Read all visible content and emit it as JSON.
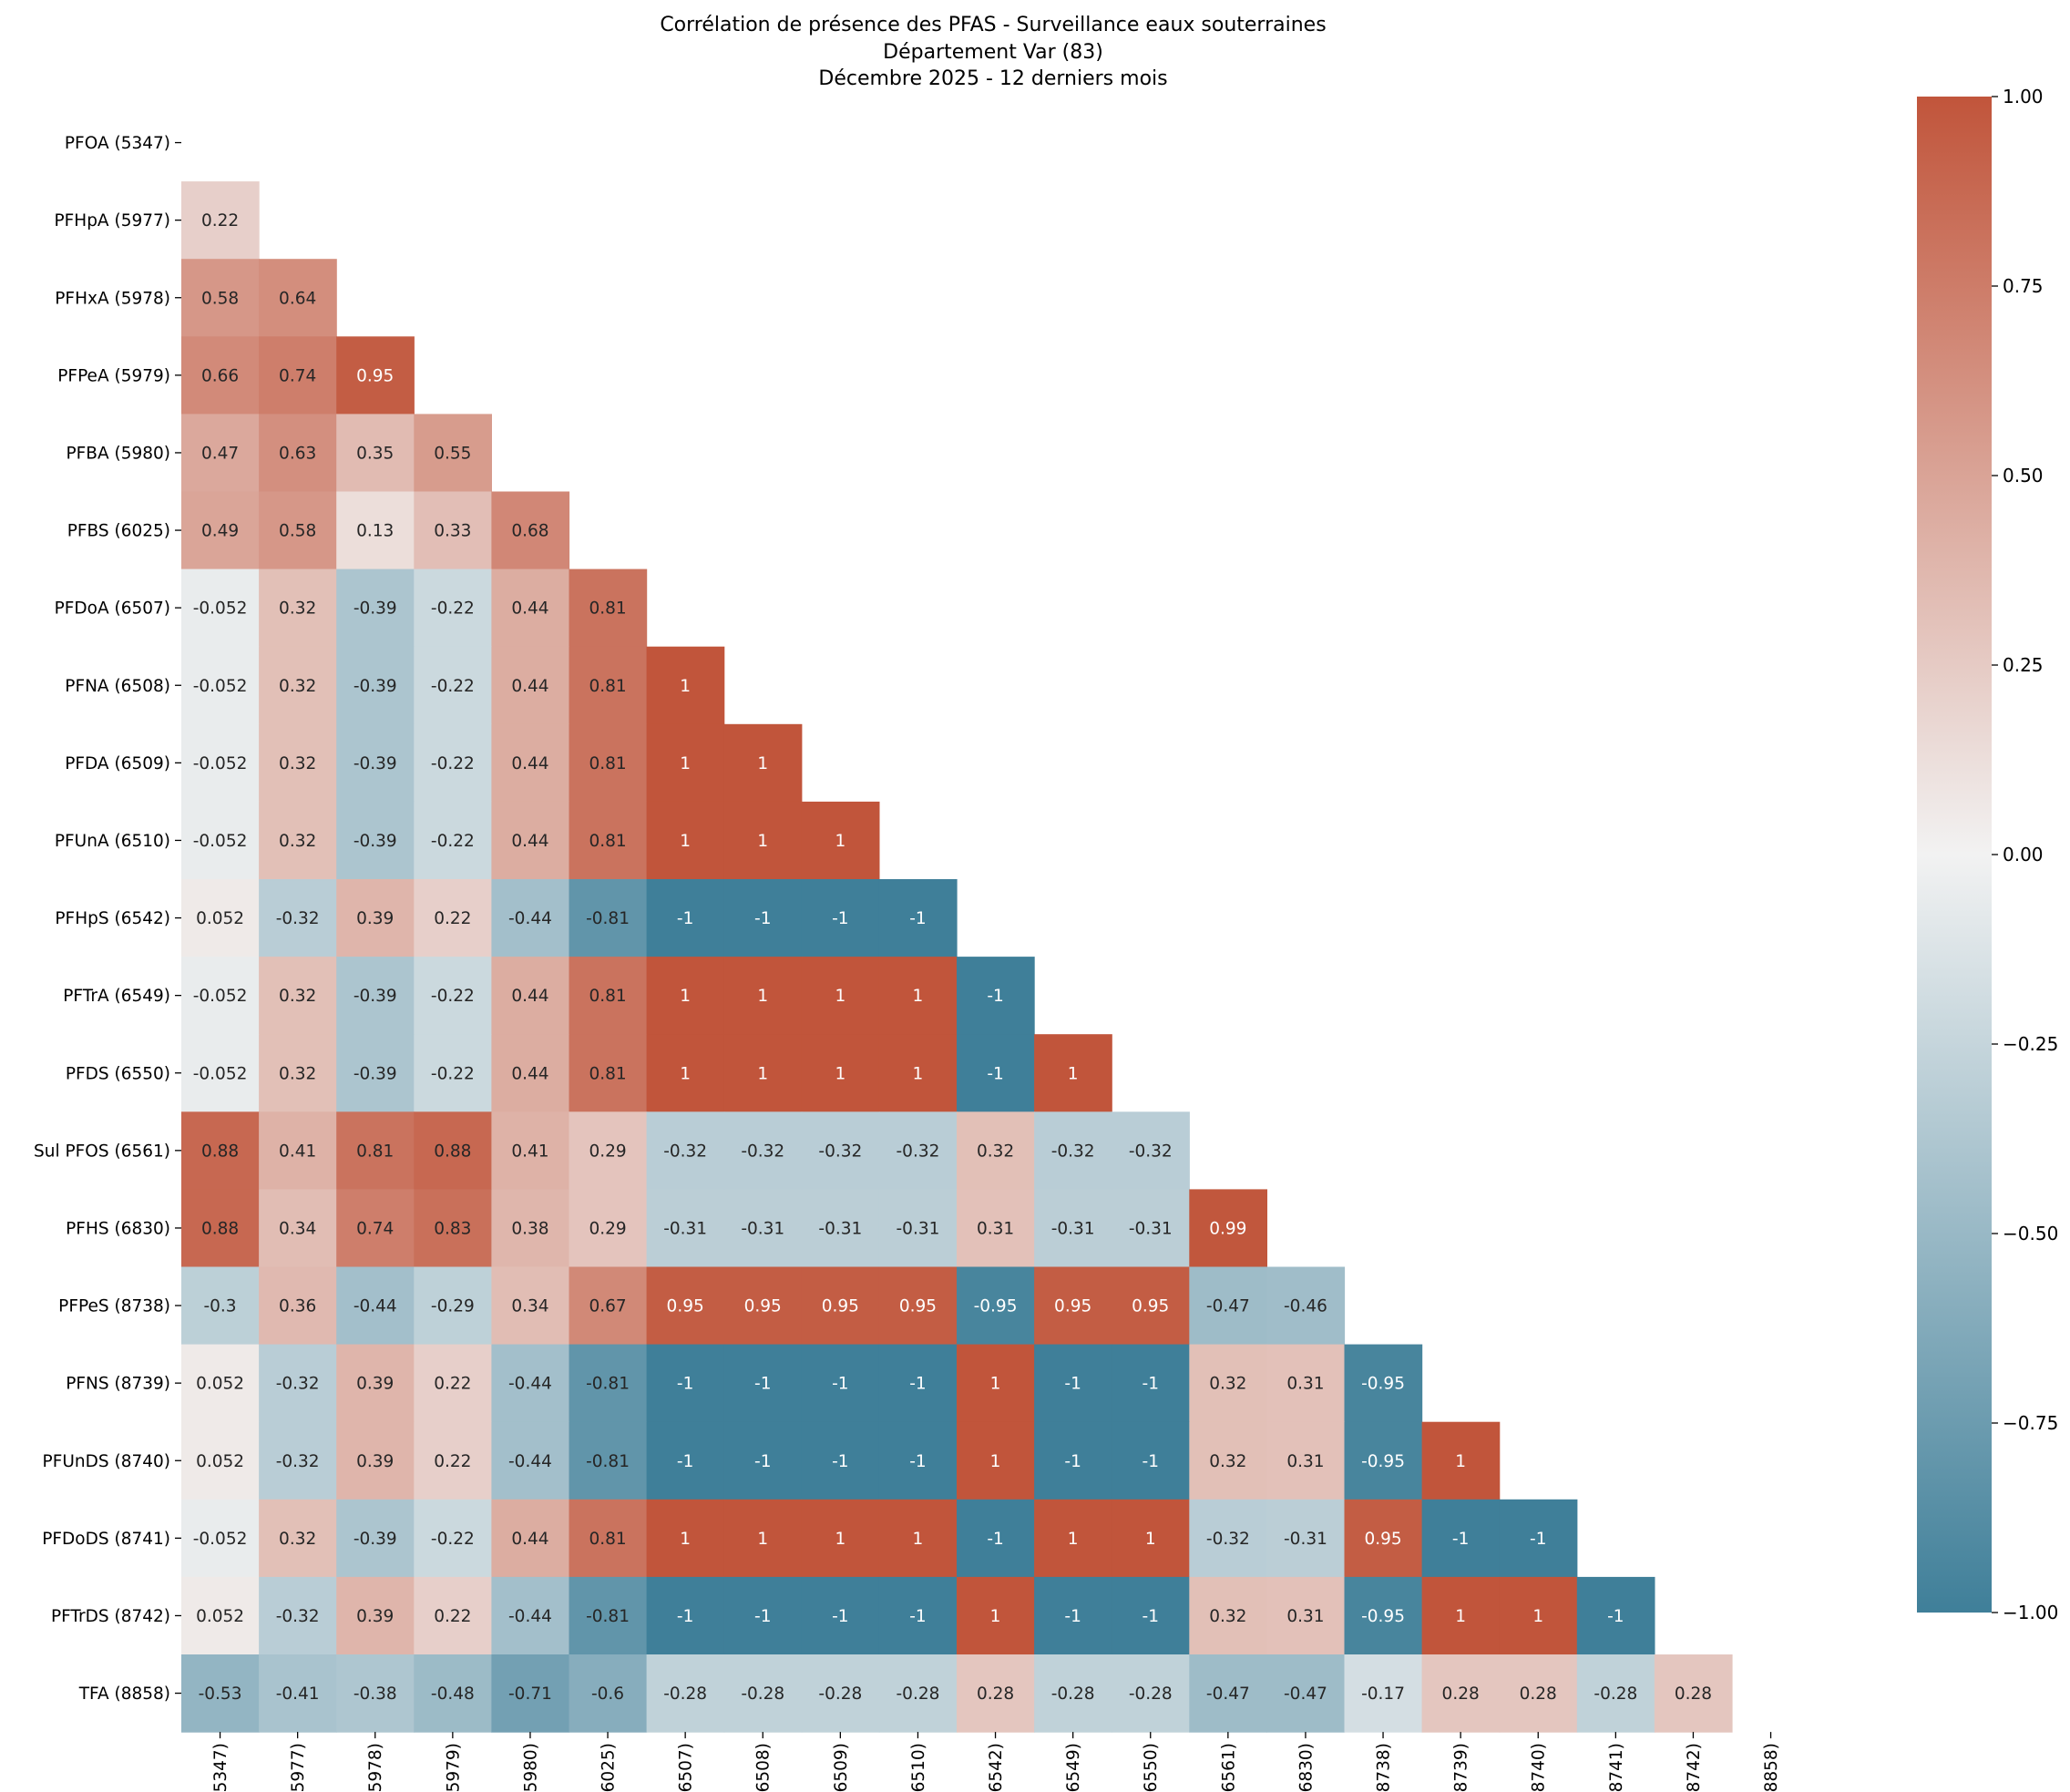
{
  "chart_data": {
    "type": "heatmap",
    "title_lines": [
      "Corrélation de présence des PFAS - Surveillance eaux souterraines",
      "Département Var (83)",
      "Décembre 2025 - 12 derniers mois"
    ],
    "labels": [
      "PFOA (5347)",
      "PFHpA (5977)",
      "PFHxA (5978)",
      "PFPeA (5979)",
      "PFBA (5980)",
      "PFBS (6025)",
      "PFDoA (6507)",
      "PFNA (6508)",
      "PFDA (6509)",
      "PFUnA (6510)",
      "PFHpS (6542)",
      "PFTrA (6549)",
      "PFDS (6550)",
      "Sul PFOS (6561)",
      "PFHS (6830)",
      "PFPeS (8738)",
      "PFNS (8739)",
      "PFUnDS (8740)",
      "PFDoDS (8741)",
      "PFTrDS (8742)",
      "TFA (8858)"
    ],
    "matrix_lower": [
      [],
      [
        0.22
      ],
      [
        0.58,
        0.64
      ],
      [
        0.66,
        0.74,
        0.95
      ],
      [
        0.47,
        0.63,
        0.35,
        0.55
      ],
      [
        0.49,
        0.58,
        0.13,
        0.33,
        0.68
      ],
      [
        -0.052,
        0.32,
        -0.39,
        -0.22,
        0.44,
        0.81
      ],
      [
        -0.052,
        0.32,
        -0.39,
        -0.22,
        0.44,
        0.81,
        1
      ],
      [
        -0.052,
        0.32,
        -0.39,
        -0.22,
        0.44,
        0.81,
        1,
        1
      ],
      [
        -0.052,
        0.32,
        -0.39,
        -0.22,
        0.44,
        0.81,
        1,
        1,
        1
      ],
      [
        0.052,
        -0.32,
        0.39,
        0.22,
        -0.44,
        -0.81,
        -1,
        -1,
        -1,
        -1
      ],
      [
        -0.052,
        0.32,
        -0.39,
        -0.22,
        0.44,
        0.81,
        1,
        1,
        1,
        1,
        -1
      ],
      [
        -0.052,
        0.32,
        -0.39,
        -0.22,
        0.44,
        0.81,
        1,
        1,
        1,
        1,
        -1,
        1
      ],
      [
        0.88,
        0.41,
        0.81,
        0.88,
        0.41,
        0.29,
        -0.32,
        -0.32,
        -0.32,
        -0.32,
        0.32,
        -0.32,
        -0.32
      ],
      [
        0.88,
        0.34,
        0.74,
        0.83,
        0.38,
        0.29,
        -0.31,
        -0.31,
        -0.31,
        -0.31,
        0.31,
        -0.31,
        -0.31,
        0.99
      ],
      [
        -0.3,
        0.36,
        -0.44,
        -0.29,
        0.34,
        0.67,
        0.95,
        0.95,
        0.95,
        0.95,
        -0.95,
        0.95,
        0.95,
        -0.47,
        -0.46
      ],
      [
        0.052,
        -0.32,
        0.39,
        0.22,
        -0.44,
        -0.81,
        -1,
        -1,
        -1,
        -1,
        1,
        -1,
        -1,
        0.32,
        0.31,
        -0.95
      ],
      [
        0.052,
        -0.32,
        0.39,
        0.22,
        -0.44,
        -0.81,
        -1,
        -1,
        -1,
        -1,
        1,
        -1,
        -1,
        0.32,
        0.31,
        -0.95,
        1
      ],
      [
        -0.052,
        0.32,
        -0.39,
        -0.22,
        0.44,
        0.81,
        1,
        1,
        1,
        1,
        -1,
        1,
        1,
        -0.32,
        -0.31,
        0.95,
        -1,
        -1
      ],
      [
        0.052,
        -0.32,
        0.39,
        0.22,
        -0.44,
        -0.81,
        -1,
        -1,
        -1,
        -1,
        1,
        -1,
        -1,
        0.32,
        0.31,
        -0.95,
        1,
        1,
        -1
      ],
      [
        -0.53,
        -0.41,
        -0.38,
        -0.48,
        -0.71,
        -0.6,
        -0.28,
        -0.28,
        -0.28,
        -0.28,
        0.28,
        -0.28,
        -0.28,
        -0.47,
        -0.47,
        -0.17,
        0.28,
        0.28,
        -0.28,
        0.28
      ]
    ],
    "mask": "upper triangle including diagonal",
    "vmin": -1.0,
    "vmax": 1.0,
    "colormap": {
      "low": "#3f7f99",
      "mid": "#f2f2f2",
      "high": "#c1553b"
    },
    "colorbar_ticks": [
      1.0,
      0.75,
      0.5,
      0.25,
      0.0,
      -0.25,
      -0.5,
      -0.75,
      -1.0
    ],
    "colorbar_tick_labels": [
      "1.00",
      "0.75",
      "0.50",
      "0.25",
      "0.00",
      "−0.25",
      "−0.50",
      "−0.75",
      "−1.00"
    ]
  }
}
